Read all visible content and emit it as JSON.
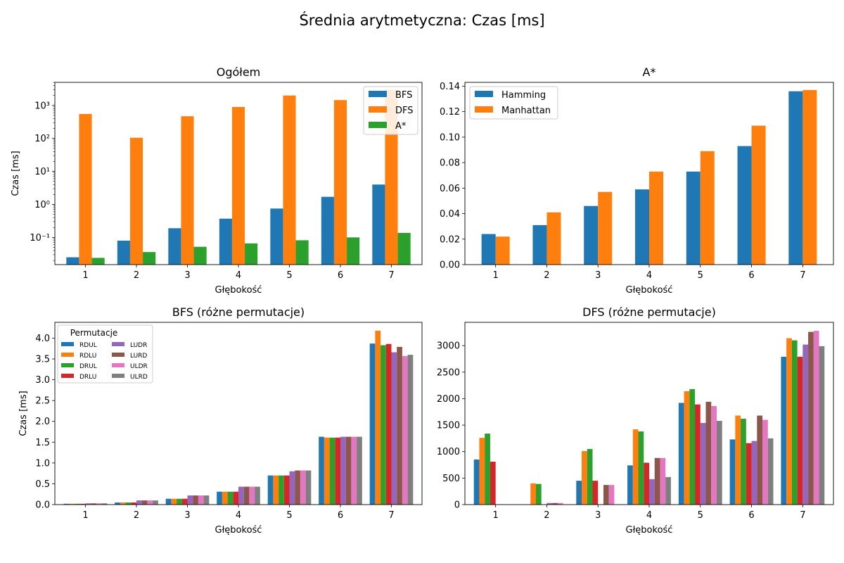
{
  "figure_title": "Średnia arytmetyczna: Czas [ms]",
  "colors": {
    "blue": "#1f77b4",
    "orange": "#ff7f0e",
    "green": "#2ca02c",
    "red": "#d62728",
    "purple": "#9467bd",
    "brown": "#8c564b",
    "pink": "#e377c2",
    "gray": "#7f7f7f"
  },
  "chart_data": [
    {
      "type": "bar",
      "title": "Ogółem",
      "xlabel": "Głębokość",
      "ylabel": "Czas [ms]",
      "yscale": "log",
      "ylim": [
        0.015,
        5000
      ],
      "categories": [
        "1",
        "2",
        "3",
        "4",
        "5",
        "6",
        "7"
      ],
      "yticks": [
        0.1,
        1,
        10,
        100,
        1000
      ],
      "ytick_labels": [
        "10⁻¹",
        "10⁰",
        "10¹",
        "10²",
        "10³"
      ],
      "legend_position": "top-right",
      "legend_title": "",
      "series": [
        {
          "name": "BFS",
          "color": "#1f77b4",
          "values": [
            0.025,
            0.08,
            0.19,
            0.37,
            0.75,
            1.7,
            4.0
          ]
        },
        {
          "name": "DFS",
          "color": "#ff7f0e",
          "values": [
            550,
            105,
            470,
            900,
            2000,
            1450,
            3000
          ]
        },
        {
          "name": "A*",
          "color": "#2ca02c",
          "values": [
            0.024,
            0.036,
            0.052,
            0.066,
            0.082,
            0.1,
            0.137
          ]
        }
      ]
    },
    {
      "type": "bar",
      "title": "A*",
      "xlabel": "Głębokość",
      "ylabel": "",
      "yscale": "linear",
      "ylim": [
        0,
        0.143
      ],
      "categories": [
        "1",
        "2",
        "3",
        "4",
        "5",
        "6",
        "7"
      ],
      "yticks": [
        0,
        0.02,
        0.04,
        0.06,
        0.08,
        0.1,
        0.12,
        0.14
      ],
      "ytick_labels": [
        "0.00",
        "0.02",
        "0.04",
        "0.06",
        "0.08",
        "0.10",
        "0.12",
        "0.14"
      ],
      "legend_position": "top-left",
      "legend_title": "",
      "series": [
        {
          "name": "Hamming",
          "color": "#1f77b4",
          "values": [
            0.024,
            0.031,
            0.046,
            0.059,
            0.073,
            0.093,
            0.136
          ]
        },
        {
          "name": "Manhattan",
          "color": "#ff7f0e",
          "values": [
            0.022,
            0.041,
            0.057,
            0.073,
            0.089,
            0.109,
            0.137
          ]
        }
      ]
    },
    {
      "type": "bar",
      "title": "BFS (różne permutacje)",
      "xlabel": "Głębokość",
      "ylabel": "Czas [ms]",
      "yscale": "linear",
      "ylim": [
        0,
        4.38
      ],
      "categories": [
        "1",
        "2",
        "3",
        "4",
        "5",
        "6",
        "7"
      ],
      "yticks": [
        0,
        0.5,
        1,
        1.5,
        2,
        2.5,
        3,
        3.5,
        4
      ],
      "ytick_labels": [
        "0.0",
        "0.5",
        "1.0",
        "1.5",
        "2.0",
        "2.5",
        "3.0",
        "3.5",
        "4.0"
      ],
      "legend_position": "top-left",
      "legend_title": "Permutacje",
      "series": [
        {
          "name": "RDUL",
          "color": "#1f77b4",
          "values": [
            0.02,
            0.05,
            0.14,
            0.31,
            0.7,
            1.63,
            3.87
          ]
        },
        {
          "name": "RDLU",
          "color": "#ff7f0e",
          "values": [
            0.02,
            0.05,
            0.14,
            0.31,
            0.7,
            1.61,
            4.18
          ]
        },
        {
          "name": "DRUL",
          "color": "#2ca02c",
          "values": [
            0.02,
            0.05,
            0.14,
            0.31,
            0.7,
            1.61,
            3.83
          ]
        },
        {
          "name": "DRLU",
          "color": "#d62728",
          "values": [
            0.02,
            0.05,
            0.14,
            0.31,
            0.7,
            1.61,
            3.86
          ]
        },
        {
          "name": "LUDR",
          "color": "#9467bd",
          "values": [
            0.03,
            0.1,
            0.22,
            0.43,
            0.8,
            1.63,
            3.66
          ]
        },
        {
          "name": "LURD",
          "color": "#8c564b",
          "values": [
            0.03,
            0.1,
            0.22,
            0.43,
            0.82,
            1.63,
            3.79
          ]
        },
        {
          "name": "ULDR",
          "color": "#e377c2",
          "values": [
            0.03,
            0.1,
            0.22,
            0.43,
            0.82,
            1.63,
            3.57
          ]
        },
        {
          "name": "ULRD",
          "color": "#7f7f7f",
          "values": [
            0.03,
            0.1,
            0.22,
            0.43,
            0.82,
            1.63,
            3.6
          ]
        }
      ]
    },
    {
      "type": "bar",
      "title": "DFS (różne permutacje)",
      "xlabel": "Głębokość",
      "ylabel": "",
      "yscale": "linear",
      "ylim": [
        0,
        3440
      ],
      "categories": [
        "1",
        "2",
        "3",
        "4",
        "5",
        "6",
        "7"
      ],
      "yticks": [
        0,
        500,
        1000,
        1500,
        2000,
        2500,
        3000
      ],
      "ytick_labels": [
        "0",
        "500",
        "1000",
        "1500",
        "2000",
        "2500",
        "3000"
      ],
      "legend_position": "none",
      "legend_title": "",
      "series": [
        {
          "name": "RDUL",
          "color": "#1f77b4",
          "values": [
            850,
            0,
            450,
            740,
            1920,
            1230,
            2790
          ]
        },
        {
          "name": "RDLU",
          "color": "#ff7f0e",
          "values": [
            1260,
            400,
            1010,
            1420,
            2140,
            1680,
            3140
          ]
        },
        {
          "name": "DRUL",
          "color": "#2ca02c",
          "values": [
            1340,
            390,
            1050,
            1380,
            2180,
            1620,
            3100
          ]
        },
        {
          "name": "DRLU",
          "color": "#d62728",
          "values": [
            810,
            0,
            450,
            790,
            1890,
            1160,
            2790
          ]
        },
        {
          "name": "LUDR",
          "color": "#9467bd",
          "values": [
            0,
            30,
            0,
            480,
            1540,
            1200,
            3020
          ]
        },
        {
          "name": "LURD",
          "color": "#8c564b",
          "values": [
            0,
            30,
            370,
            880,
            1940,
            1680,
            3260
          ]
        },
        {
          "name": "ULDR",
          "color": "#e377c2",
          "values": [
            0,
            30,
            370,
            880,
            1860,
            1600,
            3280
          ]
        },
        {
          "name": "ULRD",
          "color": "#7f7f7f",
          "values": [
            0,
            0,
            0,
            520,
            1580,
            1250,
            2990
          ]
        }
      ]
    }
  ]
}
